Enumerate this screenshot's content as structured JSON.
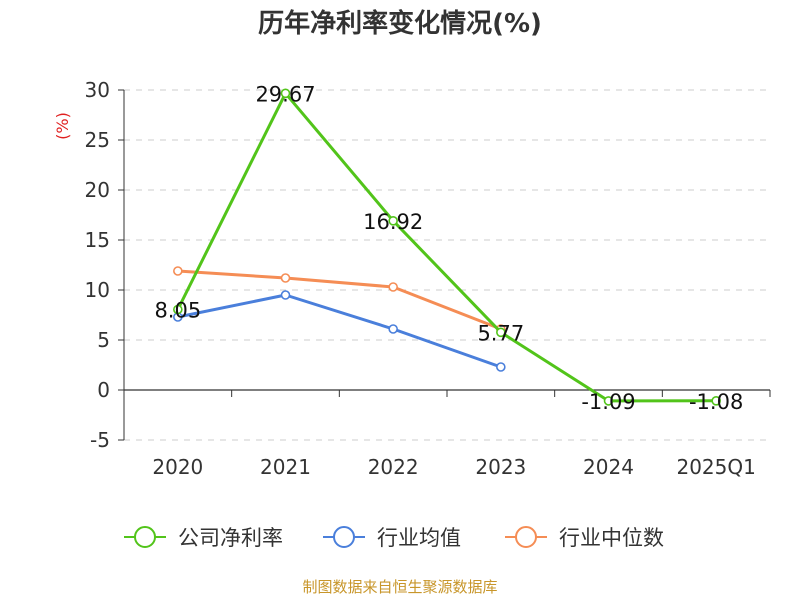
{
  "chart_data": {
    "type": "line",
    "title": "历年净利率变化情况(%)",
    "ylabel": "(%)",
    "categories": [
      "2020",
      "2021",
      "2022",
      "2023",
      "2024",
      "2025Q1"
    ],
    "yticks": [
      "30",
      "25",
      "20",
      "15",
      "10",
      "5",
      "0",
      "-5"
    ],
    "ylim": [
      -5,
      30
    ],
    "grid": true,
    "legend_position": "bottom",
    "series": [
      {
        "name": "公司净利率",
        "color": "#52c41a",
        "values": [
          8.05,
          29.67,
          16.92,
          5.77,
          -1.09,
          -1.08
        ],
        "labels": [
          "8.05",
          "29.67",
          "16.92",
          "5.77",
          "-1.09",
          "-1.08"
        ]
      },
      {
        "name": "行业均值",
        "color": "#4a7fdb",
        "values": [
          7.3,
          9.5,
          6.1,
          2.3,
          null,
          null
        ]
      },
      {
        "name": "行业中位数",
        "color": "#f58d55",
        "values": [
          11.9,
          11.2,
          10.3,
          6.1,
          null,
          null
        ]
      }
    ]
  },
  "source": "制图数据来自恒生聚源数据库"
}
